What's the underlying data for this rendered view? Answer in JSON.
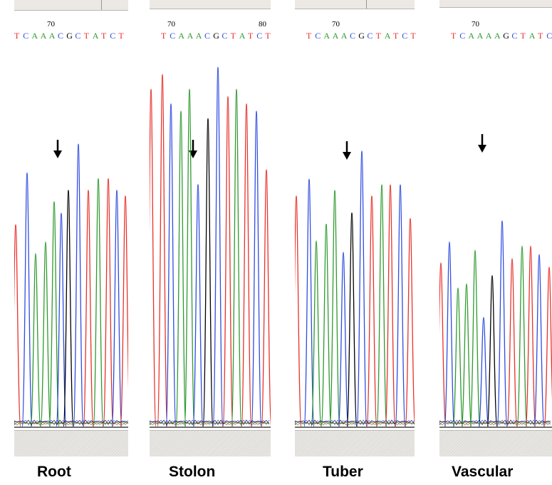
{
  "panels": [
    {
      "id": "root",
      "caption": "Root",
      "toolbar_text": "",
      "position_labels": [
        "70"
      ],
      "sequence": [
        "T",
        "C",
        "A",
        "A",
        "A",
        "C",
        "G",
        "C",
        "T",
        "A",
        "T",
        "C",
        "T"
      ],
      "sequence_colors": [
        "red",
        "blue",
        "green",
        "green",
        "green",
        "blue",
        "black",
        "blue",
        "red",
        "green",
        "red",
        "blue",
        "red"
      ]
    },
    {
      "id": "stolon",
      "caption": "Stolon",
      "toolbar_text": "",
      "position_labels": [
        "70",
        "80"
      ],
      "sequence": [
        "T",
        "C",
        "A",
        "A",
        "A",
        "C",
        "G",
        "C",
        "T",
        "A",
        "T",
        "C",
        "T"
      ],
      "sequence_colors": [
        "red",
        "blue",
        "green",
        "green",
        "green",
        "blue",
        "black",
        "blue",
        "red",
        "green",
        "red",
        "blue",
        "red"
      ]
    },
    {
      "id": "tuber",
      "caption": "Tuber",
      "toolbar_text": "",
      "position_labels": [
        "70"
      ],
      "sequence": [
        "T",
        "C",
        "A",
        "A",
        "A",
        "C",
        "G",
        "C",
        "T",
        "A",
        "T",
        "C",
        "T"
      ],
      "sequence_colors": [
        "red",
        "blue",
        "green",
        "green",
        "green",
        "blue",
        "black",
        "blue",
        "red",
        "green",
        "red",
        "blue",
        "red"
      ]
    },
    {
      "id": "vascular",
      "caption": "Vascular",
      "toolbar_text": "",
      "position_labels": [
        "70"
      ],
      "sequence": [
        "T",
        "C",
        "A",
        "A",
        "A",
        "A",
        "G",
        "C",
        "T",
        "A",
        "T",
        "C",
        "T"
      ],
      "sequence_colors": [
        "red",
        "blue",
        "green",
        "green",
        "green",
        "green",
        "black",
        "blue",
        "red",
        "green",
        "red",
        "blue",
        "red"
      ]
    }
  ],
  "colors": {
    "T": "#e8312a",
    "C": "#2f4de0",
    "A": "#2f9a2f",
    "G": "#000000",
    "red": "#e8312a",
    "blue": "#2f4de0",
    "green": "#2f9a2f",
    "black": "#000000"
  }
}
